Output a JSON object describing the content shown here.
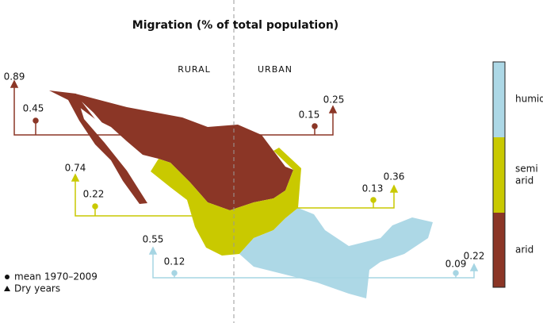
{
  "title": "Migration (% of total population)",
  "columns": {
    "rural": "RURAL",
    "urban": "URBAN"
  },
  "regions": [
    {
      "name": "arid",
      "rural": {
        "dry": 0.89,
        "mean": 0.45
      },
      "urban": {
        "mean": 0.15,
        "dry": 0.25
      }
    },
    {
      "name": [
        "semi",
        "arid"
      ],
      "rural": {
        "dry": 0.74,
        "mean": 0.22
      },
      "urban": {
        "mean": 0.13,
        "dry": 0.36
      }
    },
    {
      "name": "humid",
      "rural": {
        "dry": 0.55,
        "mean": 0.12
      },
      "urban": {
        "mean": 0.09,
        "dry": 0.22
      }
    }
  ],
  "symbol_legend": {
    "mean": "mean 1970–2009",
    "dry": "Dry years"
  }
}
